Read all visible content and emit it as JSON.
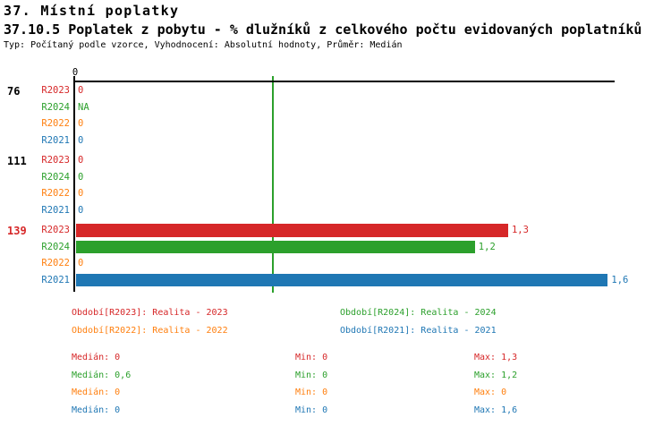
{
  "page": {
    "title": "37. Místní poplatky",
    "subtitle": "37.10.5 Poplatek z pobytu - % dlužníků z celkového počtu evidovaných poplatníků",
    "meta": "Typ: Počítaný podle vzorce, Vyhodnocení: Absolutní hodnoty, Průměr: Medián"
  },
  "colors": {
    "R2023": "#d62728",
    "R2024": "#2ca02c",
    "R2022": "#ff7f0e",
    "R2021": "#1f77b4",
    "axis": "#000000",
    "gridline": "#2ca02c"
  },
  "chart_data": {
    "type": "bar",
    "orientation": "horizontal",
    "x_axis": {
      "position": "top",
      "tick_label": "0",
      "xlim": [
        0,
        1.62
      ]
    },
    "gridline": {
      "value": 0.6,
      "color": "#2ca02c",
      "note": "vertical median line"
    },
    "series_order": [
      "R2023",
      "R2024",
      "R2022",
      "R2021"
    ],
    "groups": [
      {
        "label": "76",
        "label_color": "#000000",
        "rows": [
          {
            "series": "R2023",
            "value": 0,
            "display": "0"
          },
          {
            "series": "R2024",
            "value": null,
            "display": "NA"
          },
          {
            "series": "R2022",
            "value": 0,
            "display": "0"
          },
          {
            "series": "R2021",
            "value": 0,
            "display": "0"
          }
        ]
      },
      {
        "label": "111",
        "label_color": "#000000",
        "rows": [
          {
            "series": "R2023",
            "value": 0,
            "display": "0"
          },
          {
            "series": "R2024",
            "value": 0,
            "display": "0"
          },
          {
            "series": "R2022",
            "value": 0,
            "display": "0"
          },
          {
            "series": "R2021",
            "value": 0,
            "display": "0"
          }
        ]
      },
      {
        "label": "139",
        "label_color": "#d62728",
        "rows": [
          {
            "series": "R2023",
            "value": 1.3,
            "display": "1,3"
          },
          {
            "series": "R2024",
            "value": 1.2,
            "display": "1,2"
          },
          {
            "series": "R2022",
            "value": 0,
            "display": "0"
          },
          {
            "series": "R2021",
            "value": 1.6,
            "display": "1,6"
          }
        ]
      }
    ],
    "legend": [
      {
        "series": "R2023",
        "text": "Období[R2023]: Realita - 2023"
      },
      {
        "series": "R2024",
        "text": "Období[R2024]: Realita - 2024"
      },
      {
        "series": "R2022",
        "text": "Období[R2022]: Realita - 2022"
      },
      {
        "series": "R2021",
        "text": "Období[R2021]: Realita - 2021"
      }
    ],
    "stats": [
      {
        "series": "R2023",
        "median": "Medián: 0",
        "min": "Min: 0",
        "max": "Max: 1,3"
      },
      {
        "series": "R2024",
        "median": "Medián: 0,6",
        "min": "Min: 0",
        "max": "Max: 1,2"
      },
      {
        "series": "R2022",
        "median": "Medián: 0",
        "min": "Min: 0",
        "max": "Max: 0"
      },
      {
        "series": "R2021",
        "median": "Medián: 0",
        "min": "Min: 0",
        "max": "Max: 1,6"
      }
    ]
  }
}
